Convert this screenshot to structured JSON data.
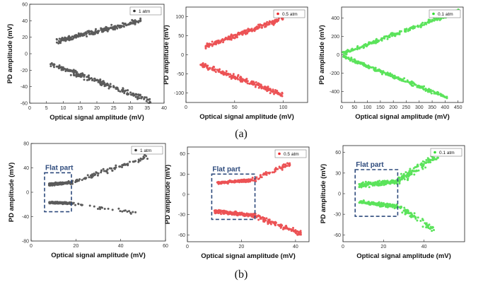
{
  "captions": {
    "top": "(a)",
    "bottom": "(b)"
  },
  "colors": {
    "black": "#333333",
    "red": "#e8282b",
    "green": "#33dd33",
    "flat_box": "#2d4a7c",
    "flat_text": "#2d4a7c"
  },
  "chart_data": [
    {
      "type": "scatter",
      "panel": "a1",
      "xlabel": "Optical signal amplitude (mV)",
      "ylabel": "PD amplitude (mV)",
      "xlim": [
        0,
        40
      ],
      "ylim": [
        -60,
        60
      ],
      "xticks": [
        0,
        5,
        10,
        15,
        20,
        25,
        30,
        35,
        40
      ],
      "yticks": [
        -60,
        -40,
        -20,
        0,
        20,
        40,
        60
      ],
      "legend": "1 atm",
      "legend_position": "top-right",
      "color": "black",
      "series": [
        {
          "name": "1 atm",
          "branches": [
            {
              "x_range": [
                8,
                33
              ],
              "y_start": 15,
              "y_end": 40,
              "spread": 4.5,
              "count": 230
            },
            {
              "x_range": [
                6,
                36
              ],
              "y_start": -12,
              "y_end": -57,
              "spread": 5,
              "count": 200
            }
          ]
        }
      ]
    },
    {
      "type": "scatter",
      "panel": "a2",
      "xlabel": "Optical signal amplitude (mV)",
      "ylabel": "PD amplitude (mV)",
      "xlim": [
        0,
        125
      ],
      "ylim": [
        -125,
        125
      ],
      "xticks": [
        0,
        50,
        100
      ],
      "yticks": [
        -100,
        -50,
        0,
        50,
        100
      ],
      "legend": "0.5 atm",
      "legend_position": "top-right",
      "color": "red",
      "series": [
        {
          "name": "0.5 atm",
          "branches": [
            {
              "x_range": [
                20,
                100
              ],
              "y_start": 22,
              "y_end": 95,
              "spread": 9,
              "count": 220
            },
            {
              "x_range": [
                15,
                100
              ],
              "y_start": -25,
              "y_end": -105,
              "spread": 10,
              "count": 210
            }
          ]
        }
      ]
    },
    {
      "type": "scatter",
      "panel": "a3",
      "xlabel": "Optical signal amplitude (mV)",
      "ylabel": "PD amplitude (mV)",
      "xlim": [
        0,
        470
      ],
      "ylim": [
        -520,
        520
      ],
      "xticks": [
        0,
        50,
        100,
        150,
        200,
        250,
        300,
        350,
        400,
        450
      ],
      "yticks": [
        -400,
        -200,
        0,
        200,
        400
      ],
      "legend": "0.1 atm",
      "legend_position": "top-right",
      "color": "green",
      "series": [
        {
          "name": "0.1 atm",
          "branches": [
            {
              "x_range": [
                5,
                455
              ],
              "y_start": 15,
              "y_end": 480,
              "spread": 30,
              "count": 260
            },
            {
              "x_range": [
                5,
                410
              ],
              "y_start": -15,
              "y_end": -470,
              "spread": 30,
              "count": 250
            }
          ]
        }
      ]
    },
    {
      "type": "scatter",
      "panel": "b1",
      "xlabel": "Optical signal amplitude (mV)",
      "ylabel": "PD amplitude (mV)",
      "xlim": [
        0,
        60
      ],
      "ylim": [
        -80,
        80
      ],
      "xticks": [
        0,
        20,
        40,
        60
      ],
      "yticks": [
        -80,
        -40,
        0,
        40,
        80
      ],
      "legend": "1 atm",
      "legend_position": "top-right",
      "color": "black",
      "annotation": {
        "text": "Flat part",
        "x_range": [
          6,
          18
        ],
        "y_range": [
          -32,
          32
        ]
      },
      "series": [
        {
          "name": "1 atm",
          "branches": [
            {
              "x_range": [
                8,
                18
              ],
              "y_start": 13,
              "y_end": 16,
              "spread": 3,
              "count": 180
            },
            {
              "x_range": [
                18,
                52
              ],
              "y_start": 16,
              "y_end": 58,
              "spread": 6,
              "count": 90
            },
            {
              "x_range": [
                8,
                18
              ],
              "y_start": -17,
              "y_end": -18,
              "spread": 2.5,
              "count": 160
            },
            {
              "x_range": [
                18,
                48
              ],
              "y_start": -18,
              "y_end": -35,
              "spread": 4,
              "count": 30
            }
          ]
        }
      ]
    },
    {
      "type": "scatter",
      "panel": "b2",
      "xlabel": "Optical signal amplitude (mV)",
      "ylabel": "PD amplitude (mV)",
      "xlim": [
        0,
        45
      ],
      "ylim": [
        -70,
        70
      ],
      "xticks": [
        0,
        20,
        40
      ],
      "yticks": [
        -60,
        -30,
        0,
        30,
        60
      ],
      "legend": "0.5 atm",
      "legend_position": "top-right",
      "color": "red",
      "annotation": {
        "text": "Flat part",
        "x_range": [
          9,
          25
        ],
        "y_range": [
          -37,
          30
        ]
      },
      "series": [
        {
          "name": "0.5 atm",
          "branches": [
            {
              "x_range": [
                11,
                24
              ],
              "y_start": 17,
              "y_end": 21,
              "spread": 3,
              "count": 170
            },
            {
              "x_range": [
                24,
                38
              ],
              "y_start": 21,
              "y_end": 45,
              "spread": 5,
              "count": 60
            },
            {
              "x_range": [
                10,
                25
              ],
              "y_start": -25,
              "y_end": -32,
              "spread": 4,
              "count": 170
            },
            {
              "x_range": [
                25,
                42
              ],
              "y_start": -32,
              "y_end": -58,
              "spread": 5,
              "count": 110
            }
          ]
        }
      ]
    },
    {
      "type": "scatter",
      "panel": "b3",
      "xlabel": "Optical signal amplitude (mV)",
      "ylabel": "PD amplitude (mV)",
      "xlim": [
        0,
        60
      ],
      "ylim": [
        -70,
        70
      ],
      "xticks": [
        0,
        20,
        40
      ],
      "yticks": [
        -60,
        -30,
        0,
        30,
        60
      ],
      "legend": "0.1 atm",
      "legend_position": "top-right",
      "color": "green",
      "annotation": {
        "text": "Flat part",
        "x_range": [
          6,
          27
        ],
        "y_range": [
          -33,
          35
        ]
      },
      "series": [
        {
          "name": "0.1 atm",
          "branches": [
            {
              "x_range": [
                8,
                27
              ],
              "y_start": 12,
              "y_end": 18,
              "spread": 5,
              "count": 170
            },
            {
              "x_range": [
                27,
                47
              ],
              "y_start": 18,
              "y_end": 57,
              "spread": 9,
              "count": 120
            },
            {
              "x_range": [
                8,
                27
              ],
              "y_start": -12,
              "y_end": -19,
              "spread": 4,
              "count": 160
            },
            {
              "x_range": [
                27,
                45
              ],
              "y_start": -19,
              "y_end": -52,
              "spread": 8,
              "count": 70
            }
          ]
        }
      ]
    }
  ]
}
